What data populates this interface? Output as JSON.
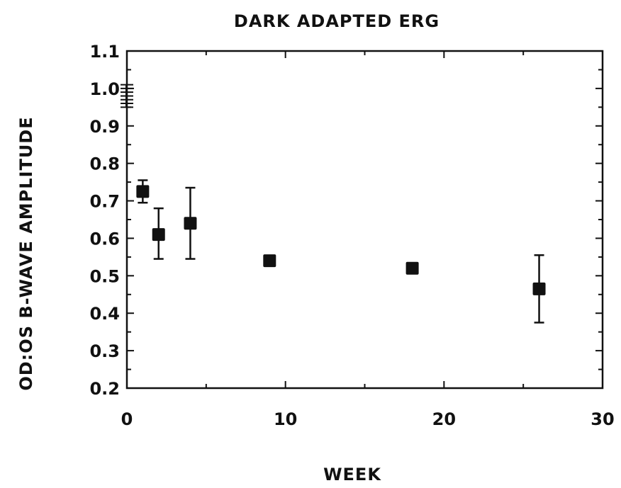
{
  "chart_data": {
    "type": "scatter",
    "title": "DARK ADAPTED ERG",
    "xlabel": "WEEK",
    "ylabel": "OD:OS B-WAVE AMPLITUDE",
    "xlim": [
      0,
      30
    ],
    "ylim": [
      0.2,
      1.1
    ],
    "x_ticks": [
      0,
      10,
      20,
      30
    ],
    "x_tick_labels": [
      "0",
      "10",
      "20",
      "30"
    ],
    "y_ticks": [
      0.2,
      0.3,
      0.4,
      0.5,
      0.6,
      0.7,
      0.8,
      0.9,
      1.0,
      1.1
    ],
    "y_tick_labels": [
      "0.2",
      "0.3",
      "0.4",
      "0.5",
      "0.6",
      "0.7",
      "0.8",
      "0.9",
      "1.0",
      "1.1"
    ],
    "grid": false,
    "series": [
      {
        "points": [
          {
            "x": 1,
            "y": 0.725,
            "err_low": 0.695,
            "err_high": 0.755
          },
          {
            "x": 2,
            "y": 0.61,
            "err_low": 0.545,
            "err_high": 0.68
          },
          {
            "x": 4,
            "y": 0.64,
            "err_low": 0.545,
            "err_high": 0.735
          },
          {
            "x": 9,
            "y": 0.54,
            "err_low": 0.535,
            "err_high": 0.545
          },
          {
            "x": 18,
            "y": 0.52,
            "err_low": 0.515,
            "err_high": 0.525
          },
          {
            "x": 26,
            "y": 0.465,
            "err_low": 0.375,
            "err_high": 0.555
          }
        ]
      }
    ],
    "annotations": [
      {
        "type": "y-axis-tick-cluster",
        "y_values": [
          0.95,
          0.96,
          0.97,
          0.98,
          0.99,
          1.0,
          1.01
        ]
      }
    ]
  }
}
